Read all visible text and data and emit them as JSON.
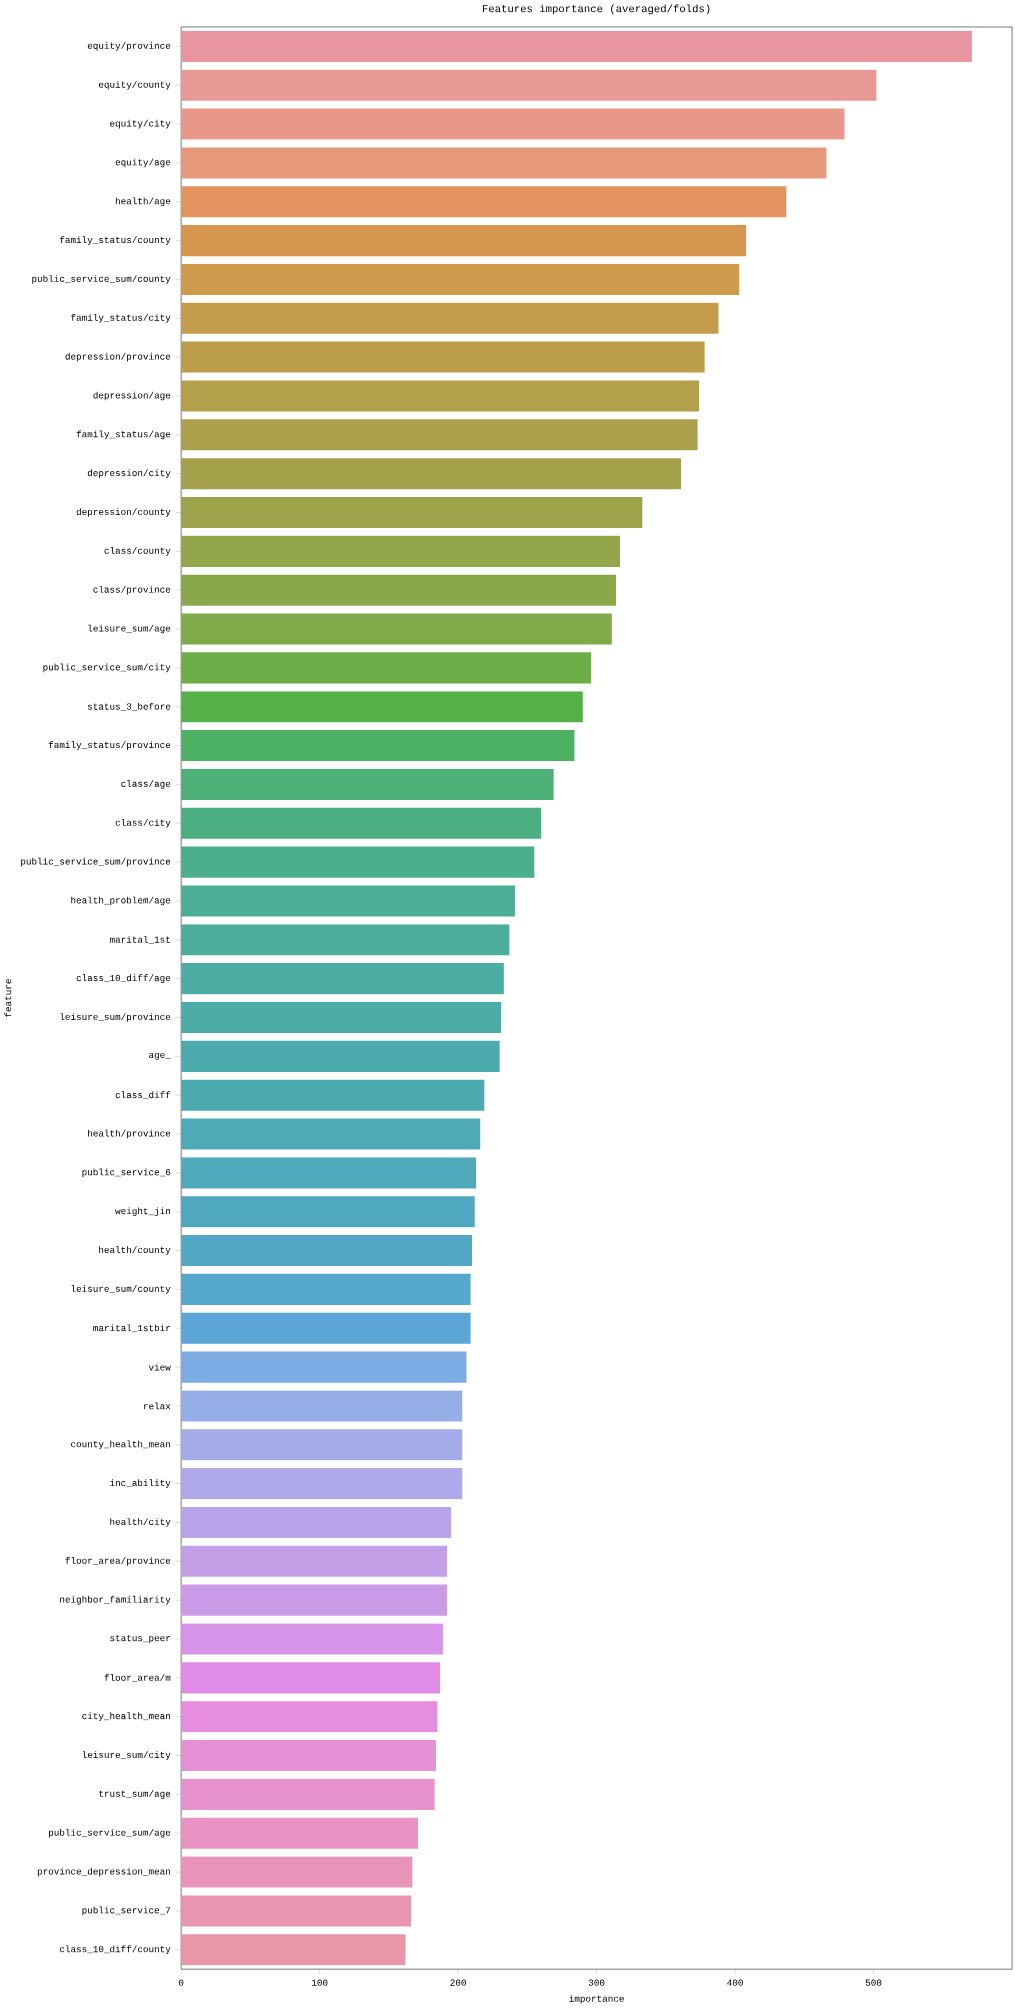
{
  "chart_data": {
    "type": "bar",
    "orientation": "horizontal",
    "title": "Features importance (averaged/folds)",
    "xlabel": "importance",
    "ylabel": "feature",
    "categories": [
      "equity/province",
      "equity/county",
      "equity/city",
      "equity/age",
      "health/age",
      "family_status/county",
      "public_service_sum/county",
      "family_status/city",
      "depression/province",
      "depression/age",
      "family_status/age",
      "depression/city",
      "depression/county",
      "class/county",
      "class/province",
      "leisure_sum/age",
      "public_service_sum/city",
      "status_3_before",
      "family_status/province",
      "class/age",
      "class/city",
      "public_service_sum/province",
      "health_problem/age",
      "marital_1st",
      "class_10_diff/age",
      "leisure_sum/province",
      "age_",
      "class_diff",
      "health/province",
      "public_service_6",
      "weight_jin",
      "health/county",
      "leisure_sum/county",
      "marital_1stbir",
      "view",
      "relax",
      "county_health_mean",
      "inc_ability",
      "health/city",
      "floor_area/province",
      "neighbor_familiarity",
      "status_peer",
      "floor_area/m",
      "city_health_mean",
      "leisure_sum/city",
      "trust_sum/age",
      "public_service_sum/age",
      "province_depression_mean",
      "public_service_7",
      "class_10_diff/county"
    ],
    "values": [
      571,
      502,
      479,
      466,
      437,
      408,
      403,
      388,
      378,
      374,
      373,
      361,
      333,
      317,
      314,
      311,
      296,
      290,
      284,
      269,
      260,
      255,
      241,
      237,
      233,
      231,
      230,
      219,
      216,
      213,
      212,
      210,
      209,
      209,
      206,
      203,
      203,
      203,
      195,
      192,
      192,
      189,
      187,
      185,
      184,
      183,
      171,
      167,
      166,
      162
    ],
    "colors": [
      "#e8959f",
      "#e89895",
      "#e89788",
      "#e6997a",
      "#e2935e",
      "#d5964e",
      "#ce9a4c",
      "#c49c4b",
      "#bb9d4a",
      "#b49f4a",
      "#aca04a",
      "#a4a14a",
      "#9ca34a",
      "#93a64a",
      "#8aa84a",
      "#7fab4a",
      "#6eae49",
      "#55b147",
      "#4db163",
      "#4cb077",
      "#4caf82",
      "#4caf8c",
      "#4cae94",
      "#4cad9b",
      "#4cada2",
      "#4caca8",
      "#4cacad",
      "#4cabb1",
      "#4daab6",
      "#4ea9bb",
      "#4fa8c0",
      "#52a7c5",
      "#55a7cb",
      "#5ca5d7",
      "#7dace4",
      "#96aee8",
      "#a3abe9",
      "#afa8ea",
      "#b9a4e9",
      "#c39fe8",
      "#cc9be7",
      "#d693e7",
      "#e08be6",
      "#e68ddf",
      "#e690d7",
      "#e792cd",
      "#e893c3",
      "#e894ba",
      "#e895b1",
      "#e996a9"
    ],
    "xlim": [
      0,
      600
    ],
    "xticks": [
      0,
      100,
      200,
      300,
      400,
      500
    ]
  }
}
